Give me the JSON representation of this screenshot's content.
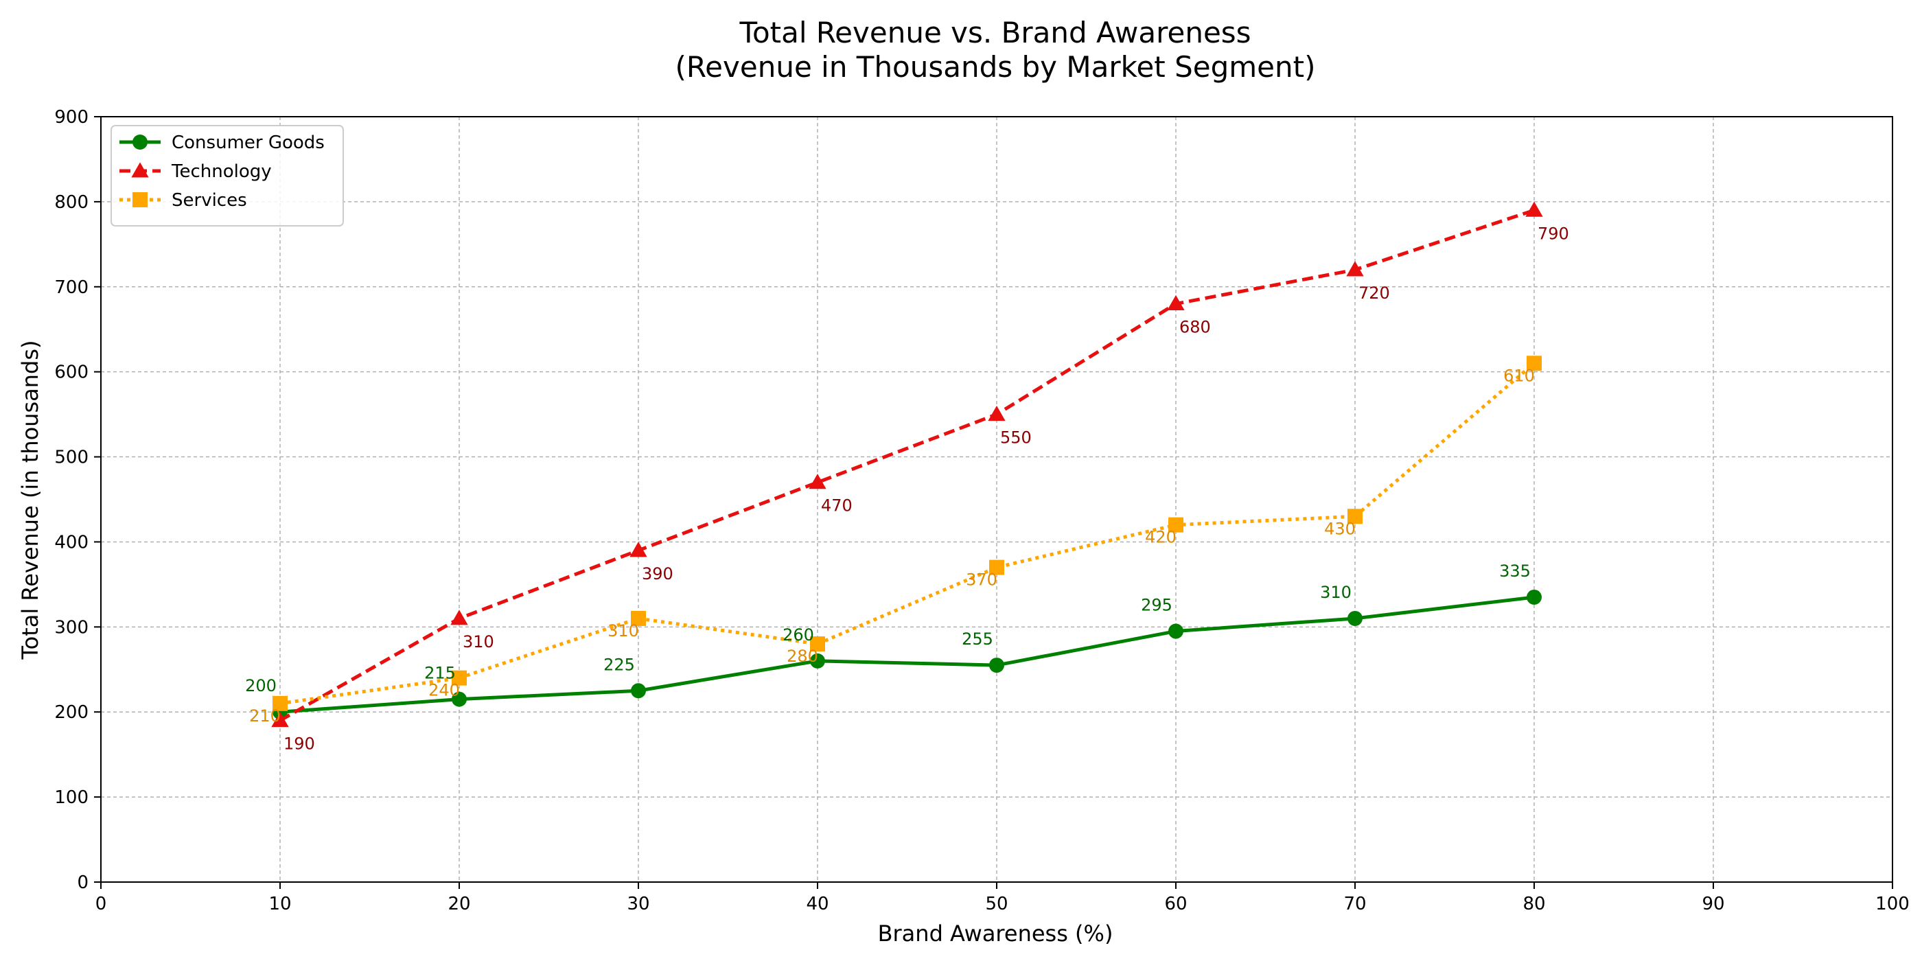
{
  "chart_data": {
    "type": "line",
    "title_line1": "Total Revenue vs. Brand Awareness",
    "title_line2": "(Revenue in Thousands by Market Segment)",
    "xlabel": "Brand Awareness (%)",
    "ylabel": "Total Revenue (in thousands)",
    "xlim": [
      0,
      100
    ],
    "ylim": [
      0,
      900
    ],
    "xticks": [
      0,
      10,
      20,
      30,
      40,
      50,
      60,
      70,
      80,
      90,
      100
    ],
    "yticks": [
      0,
      100,
      200,
      300,
      400,
      500,
      600,
      700,
      800,
      900
    ],
    "grid": true,
    "legend_position": "top-left",
    "x": [
      10,
      20,
      30,
      40,
      50,
      60,
      70,
      80
    ],
    "series": [
      {
        "name": "Consumer Goods",
        "values": [
          200,
          215,
          225,
          260,
          255,
          295,
          310,
          335
        ],
        "color": "#008000",
        "label_color": "#006400",
        "line_style": "solid",
        "marker": "circle"
      },
      {
        "name": "Technology",
        "values": [
          190,
          310,
          390,
          470,
          550,
          680,
          720,
          790
        ],
        "color": "#e8100f",
        "label_color": "#8b0000",
        "line_style": "dashed",
        "marker": "triangle"
      },
      {
        "name": "Services",
        "values": [
          210,
          240,
          310,
          280,
          370,
          420,
          430,
          610
        ],
        "color": "#ffa500",
        "label_color": "#e08a00",
        "line_style": "dotted",
        "marker": "square"
      }
    ]
  }
}
